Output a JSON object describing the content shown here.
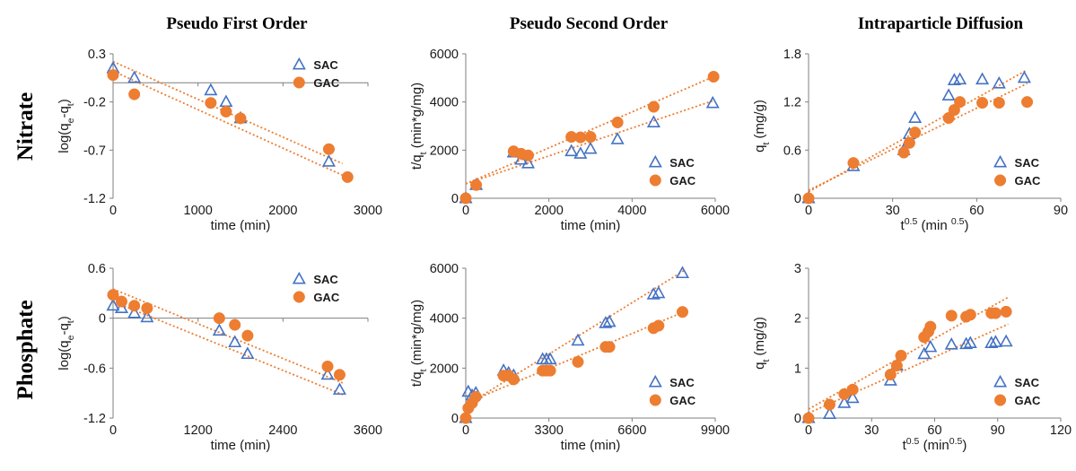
{
  "figure": {
    "column_titles": [
      "Pseudo First Order",
      "Pseudo Second Order",
      "Intraparticle Diffusion"
    ],
    "row_labels": [
      "Nitrate",
      "Phosphate"
    ],
    "colors": {
      "SAC": "#4472c4",
      "GAC": "#ed7d31",
      "trendline": "#ed7d31",
      "axis": "#7f7f7f"
    }
  },
  "chart_data": [
    {
      "id": "nitrate-pfo",
      "type": "scatter",
      "row": 0,
      "col": 0,
      "xlabel": [
        {
          "t": "time (min)"
        }
      ],
      "ylabel": [
        {
          "t": "log(q"
        },
        {
          "t": "e",
          "sub": true
        },
        {
          "t": "-q"
        },
        {
          "t": "t",
          "sub": true
        },
        {
          "t": ")"
        }
      ],
      "xlim": [
        0,
        3000
      ],
      "ylim": [
        -1.2,
        0.3
      ],
      "xticks": [
        0,
        1000,
        2000,
        3000
      ],
      "xticklabels": [
        "0",
        "1000",
        "2000",
        "3000"
      ],
      "yticks": [
        -1.2,
        -0.7,
        -0.2,
        0.3
      ],
      "yticklabels": [
        "-1.2",
        "-0.7",
        "-0.2",
        "0.3"
      ],
      "legend": "top-right",
      "series": [
        {
          "name": "SAC",
          "marker": "triangle",
          "x": [
            0,
            250,
            1150,
            1330,
            1500,
            2540
          ],
          "y": [
            0.15,
            0.05,
            -0.08,
            -0.2,
            -0.37,
            -0.82
          ],
          "fit": [
            [
              0,
              0.22
            ],
            [
              2700,
              -0.84
            ]
          ]
        },
        {
          "name": "GAC",
          "marker": "circle",
          "x": [
            0,
            250,
            1150,
            1330,
            1500,
            2540,
            2760
          ],
          "y": [
            0.08,
            -0.12,
            -0.21,
            -0.3,
            -0.37,
            -0.69,
            -0.98
          ],
          "fit": [
            [
              0,
              0.12
            ],
            [
              2700,
              -0.96
            ]
          ]
        }
      ]
    },
    {
      "id": "nitrate-pso",
      "type": "scatter",
      "row": 0,
      "col": 1,
      "xlabel": [
        {
          "t": "time (min)"
        }
      ],
      "ylabel": [
        {
          "t": "t/q"
        },
        {
          "t": "t",
          "sub": true
        },
        {
          "t": " (min*g/mg)"
        }
      ],
      "xlim": [
        0,
        6000
      ],
      "ylim": [
        0,
        6000
      ],
      "xticks": [
        0,
        2000,
        4000,
        6000
      ],
      "xticklabels": [
        "0",
        "2000",
        "4000",
        "6000"
      ],
      "yticks": [
        0,
        2000,
        4000,
        6000
      ],
      "yticklabels": [
        "0",
        "2000",
        "4000",
        "6000"
      ],
      "legend": "bottom-right",
      "series": [
        {
          "name": "SAC",
          "marker": "triangle",
          "x": [
            0,
            250,
            1150,
            1330,
            1500,
            2540,
            2760,
            3000,
            3650,
            4520,
            5940
          ],
          "y": [
            0,
            550,
            1900,
            1600,
            1450,
            1950,
            1850,
            2050,
            2450,
            3150,
            3950
          ],
          "fit": [
            [
              0,
              600
            ],
            [
              5950,
              4050
            ]
          ]
        },
        {
          "name": "GAC",
          "marker": "circle",
          "x": [
            0,
            250,
            1150,
            1330,
            1500,
            2540,
            2760,
            3000,
            3650,
            4520,
            5960
          ],
          "y": [
            0,
            550,
            1950,
            1850,
            1780,
            2550,
            2530,
            2550,
            3150,
            3800,
            5050
          ],
          "fit": [
            [
              0,
              600
            ],
            [
              5960,
              5050
            ]
          ]
        }
      ]
    },
    {
      "id": "nitrate-ipd",
      "type": "scatter",
      "row": 0,
      "col": 2,
      "xlabel": [
        {
          "t": "t"
        },
        {
          "t": "0.5",
          "sup": true
        },
        {
          "t": " (min "
        },
        {
          "t": "0.5",
          "sup": true
        },
        {
          "t": ")"
        }
      ],
      "ylabel": [
        {
          "t": "q"
        },
        {
          "t": "t",
          "sub": true
        },
        {
          "t": " (mg/g)"
        }
      ],
      "xlim": [
        0,
        90
      ],
      "ylim": [
        0,
        1.8
      ],
      "xticks": [
        0,
        30,
        60,
        90
      ],
      "xticklabels": [
        "0",
        "30",
        "60",
        "90"
      ],
      "yticks": [
        0,
        0.6,
        1.2,
        1.8
      ],
      "yticklabels": [
        "0",
        "0.6",
        "1.2",
        "1.8"
      ],
      "legend": "bottom-right",
      "series": [
        {
          "name": "SAC",
          "marker": "triangle",
          "x": [
            0,
            16,
            34,
            36,
            38,
            50,
            52,
            54,
            62,
            68,
            77
          ],
          "y": [
            0,
            0.4,
            0.6,
            0.8,
            1.0,
            1.28,
            1.47,
            1.48,
            1.48,
            1.43,
            1.5
          ],
          "fit": [
            [
              0,
              0.08
            ],
            [
              78,
              1.6
            ]
          ]
        },
        {
          "name": "GAC",
          "marker": "circle",
          "x": [
            0,
            16,
            34,
            36,
            38,
            50,
            52,
            54,
            62,
            68,
            78
          ],
          "y": [
            0,
            0.44,
            0.57,
            0.69,
            0.82,
            1.0,
            1.1,
            1.2,
            1.19,
            1.19,
            1.2
          ],
          "fit": [
            [
              0,
              0.1
            ],
            [
              78,
              1.43
            ]
          ]
        }
      ]
    },
    {
      "id": "phosphate-pfo",
      "type": "scatter",
      "row": 1,
      "col": 0,
      "xlabel": [
        {
          "t": "time (min)"
        }
      ],
      "ylabel": [
        {
          "t": "log(q"
        },
        {
          "t": "e",
          "sub": true
        },
        {
          "t": "-q"
        },
        {
          "t": "t",
          "sub": true
        },
        {
          "t": ")"
        }
      ],
      "xlim": [
        0,
        3600
      ],
      "ylim": [
        -1.2,
        0.6
      ],
      "xticks": [
        0,
        1200,
        2400,
        3600
      ],
      "xticklabels": [
        "0",
        "1200",
        "2400",
        "3600"
      ],
      "yticks": [
        -1.2,
        -0.6,
        0,
        0.6
      ],
      "yticklabels": [
        "-1.2",
        "-0.6",
        "0",
        "0.6"
      ],
      "legend": "top-right",
      "series": [
        {
          "name": "SAC",
          "marker": "triangle",
          "x": [
            0,
            120,
            300,
            480,
            1500,
            1720,
            1900,
            3030,
            3200
          ],
          "y": [
            0.15,
            0.12,
            0.06,
            0.01,
            -0.15,
            -0.29,
            -0.43,
            -0.68,
            -0.86
          ],
          "fit": [
            [
              0,
              0.2
            ],
            [
              3250,
              -0.92
            ]
          ]
        },
        {
          "name": "GAC",
          "marker": "circle",
          "x": [
            0,
            120,
            300,
            480,
            1500,
            1720,
            1900,
            3030,
            3200
          ],
          "y": [
            0.28,
            0.2,
            0.15,
            0.12,
            0.0,
            -0.08,
            -0.21,
            -0.58,
            -0.68
          ],
          "fit": [
            [
              0,
              0.35
            ],
            [
              3250,
              -0.78
            ]
          ]
        }
      ]
    },
    {
      "id": "phosphate-pso",
      "type": "scatter",
      "row": 1,
      "col": 1,
      "xlabel": [
        {
          "t": "time (min)"
        }
      ],
      "ylabel": [
        {
          "t": "t/q"
        },
        {
          "t": "t",
          "sub": true
        },
        {
          "t": " (min*g/mg)"
        }
      ],
      "xlim": [
        0,
        9900
      ],
      "ylim": [
        0,
        6000
      ],
      "xticks": [
        0,
        3300,
        6600,
        9900
      ],
      "xticklabels": [
        "0",
        "3300",
        "6600",
        "9900"
      ],
      "yticks": [
        0,
        2000,
        4000,
        6000
      ],
      "yticklabels": [
        "0",
        "2000",
        "4000",
        "6000"
      ],
      "legend": "bottom-right",
      "series": [
        {
          "name": "SAC",
          "marker": "triangle",
          "x": [
            0,
            100,
            250,
            400,
            1500,
            1700,
            1900,
            3050,
            3200,
            3350,
            4450,
            5550,
            5700,
            7450,
            7650,
            8600
          ],
          "y": [
            0,
            1050,
            900,
            1000,
            1900,
            1800,
            1700,
            2350,
            2350,
            2350,
            3100,
            3800,
            3850,
            4950,
            5000,
            5800
          ],
          "fit": [
            [
              0,
              500
            ],
            [
              8650,
              5900
            ]
          ]
        },
        {
          "name": "GAC",
          "marker": "circle",
          "x": [
            0,
            100,
            250,
            400,
            1500,
            1700,
            1900,
            3050,
            3200,
            3350,
            4450,
            5550,
            5700,
            7450,
            7650,
            8600
          ],
          "y": [
            0,
            400,
            600,
            850,
            1700,
            1700,
            1550,
            1900,
            1900,
            1900,
            2250,
            2850,
            2850,
            3600,
            3700,
            4250
          ],
          "fit": [
            [
              0,
              600
            ],
            [
              8650,
              4250
            ]
          ]
        }
      ]
    },
    {
      "id": "phosphate-ipd",
      "type": "scatter",
      "row": 1,
      "col": 2,
      "xlabel": [
        {
          "t": "t"
        },
        {
          "t": "0.5",
          "sup": true
        },
        {
          "t": " (min"
        },
        {
          "t": "0.5",
          "sup": true
        },
        {
          "t": ")"
        }
      ],
      "ylabel": [
        {
          "t": "q"
        },
        {
          "t": "t",
          "sub": true
        },
        {
          "t": " (mg/g)"
        }
      ],
      "xlim": [
        0,
        120
      ],
      "ylim": [
        0,
        3
      ],
      "xticks": [
        0,
        30,
        60,
        90,
        120
      ],
      "xticklabels": [
        "0",
        "30",
        "60",
        "90",
        "120"
      ],
      "yticks": [
        0,
        1,
        2,
        3
      ],
      "yticklabels": [
        "0",
        "1",
        "2",
        "3"
      ],
      "legend": "bottom-right",
      "series": [
        {
          "name": "SAC",
          "marker": "triangle",
          "x": [
            0,
            10,
            17,
            21,
            39,
            42,
            55,
            58,
            68,
            75,
            77,
            87,
            89,
            94
          ],
          "y": [
            0,
            0.08,
            0.3,
            0.4,
            0.75,
            1.05,
            1.28,
            1.42,
            1.47,
            1.48,
            1.5,
            1.5,
            1.52,
            1.53
          ],
          "fit": [
            [
              0,
              0.1
            ],
            [
              95,
              1.88
            ]
          ]
        },
        {
          "name": "GAC",
          "marker": "circle",
          "x": [
            0,
            10,
            17,
            21,
            39,
            42,
            44,
            55,
            57,
            58,
            68,
            75,
            77,
            87,
            89,
            94
          ],
          "y": [
            0,
            0.27,
            0.48,
            0.57,
            0.87,
            1.05,
            1.25,
            1.62,
            1.73,
            1.83,
            2.05,
            2.03,
            2.07,
            2.1,
            2.1,
            2.13
          ],
          "fit": [
            [
              0,
              0.18
            ],
            [
              95,
              2.42
            ]
          ]
        }
      ]
    }
  ]
}
